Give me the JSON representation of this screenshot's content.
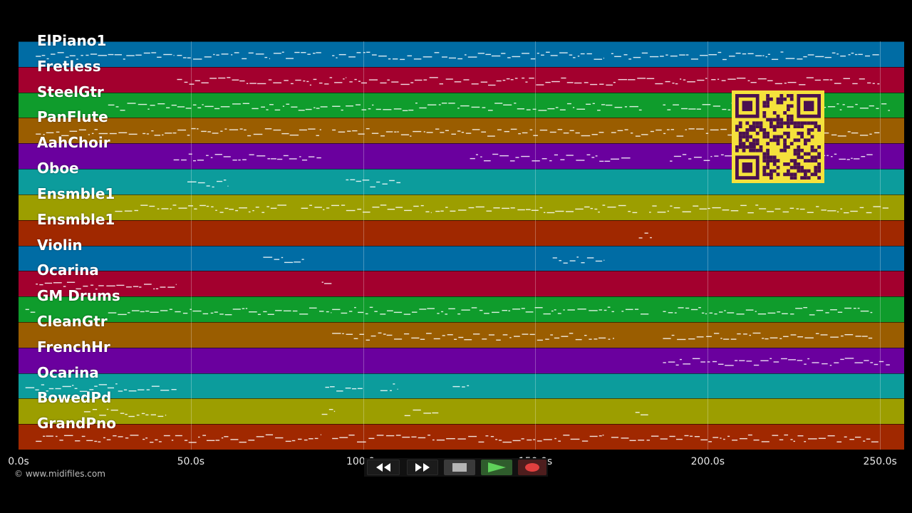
{
  "tracks": [
    {
      "name": "ElPiano1",
      "color": "#006ca4"
    },
    {
      "name": "Fretless",
      "color": "#a3002e"
    },
    {
      "name": "SteelGtr",
      "color": "#0f9c2c"
    },
    {
      "name": "PanFlute",
      "color": "#9a5d00"
    },
    {
      "name": "AahChoir",
      "color": "#6a009e"
    },
    {
      "name": "Oboe",
      "color": "#0c9c9c"
    },
    {
      "name": "Ensmble1",
      "color": "#9c9e00"
    },
    {
      "name": "Ensmble1",
      "color": "#a02800"
    },
    {
      "name": "Violin",
      "color": "#006ca4"
    },
    {
      "name": "Ocarina",
      "color": "#a3002e"
    },
    {
      "name": "GM Drums",
      "color": "#0f9c2c"
    },
    {
      "name": "CleanGtr",
      "color": "#9a5d00"
    },
    {
      "name": "FrenchHr",
      "color": "#6a009e"
    },
    {
      "name": "Ocarina",
      "color": "#0c9c9c"
    },
    {
      "name": "BowedPd",
      "color": "#9c9e00"
    },
    {
      "name": "GrandPno",
      "color": "#a02800"
    }
  ],
  "timeline": {
    "max_seconds": 257,
    "ticks": [
      {
        "value": 0,
        "label": "0.0s"
      },
      {
        "value": 50,
        "label": "50.0s"
      },
      {
        "value": 100,
        "label": "100.0s"
      },
      {
        "value": 150,
        "label": "150.0s"
      },
      {
        "value": 200,
        "label": "200.0s"
      },
      {
        "value": 250,
        "label": "250.0s"
      }
    ]
  },
  "notes_by_track": [
    [
      [
        5,
        45
      ],
      [
        46,
        73
      ],
      [
        74,
        88
      ],
      [
        91,
        170
      ],
      [
        172,
        250
      ]
    ],
    [
      [
        46,
        95
      ],
      [
        96,
        145
      ],
      [
        146,
        200
      ],
      [
        201,
        250
      ]
    ],
    [
      [
        26,
        90
      ],
      [
        91,
        181
      ],
      [
        187,
        253
      ]
    ],
    [
      [
        5,
        35
      ],
      [
        36,
        88
      ],
      [
        91,
        170
      ],
      [
        172,
        250
      ]
    ],
    [
      [
        45,
        88
      ],
      [
        131,
        178
      ],
      [
        189,
        248
      ]
    ],
    [
      [
        49,
        61
      ],
      [
        95,
        111
      ]
    ],
    [
      [
        28,
        78
      ],
      [
        82,
        120
      ],
      [
        121,
        180
      ],
      [
        183,
        253
      ]
    ],
    [
      [
        180,
        184
      ]
    ],
    [
      [
        71,
        83
      ],
      [
        155,
        170
      ]
    ],
    [
      [
        5,
        46
      ],
      [
        88,
        91
      ]
    ],
    [
      [
        2,
        5
      ],
      [
        26,
        91
      ],
      [
        91,
        173
      ],
      [
        175,
        183
      ],
      [
        187,
        248
      ]
    ],
    [
      [
        91,
        173
      ],
      [
        187,
        248
      ]
    ],
    [
      [
        187,
        253
      ]
    ],
    [
      [
        2,
        46
      ],
      [
        89,
        100
      ],
      [
        105,
        110
      ],
      [
        126,
        131
      ]
    ],
    [
      [
        19,
        43
      ],
      [
        88,
        92
      ],
      [
        112,
        122
      ],
      [
        179,
        183
      ]
    ],
    [
      [
        5,
        35
      ],
      [
        36,
        88
      ],
      [
        91,
        170
      ],
      [
        172,
        250
      ]
    ]
  ],
  "copyright": "© www.midifiles.com",
  "qr_icon": "qr-code-icon",
  "transport": {
    "rewind_icon": "rewind-icon",
    "fast_forward_icon": "fast-forward-icon",
    "stop_icon": "stop-icon",
    "play_icon": "play-icon",
    "record_icon": "record-icon"
  }
}
